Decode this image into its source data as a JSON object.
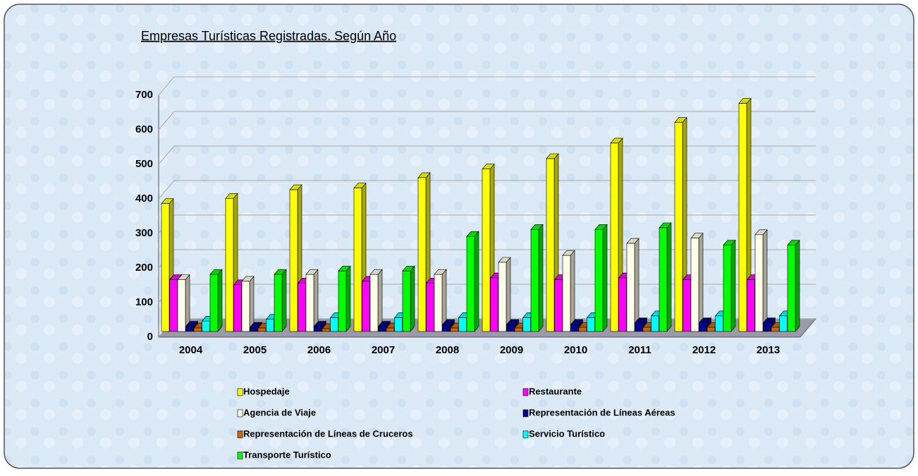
{
  "chart_data": {
    "type": "bar3d",
    "title": "Empresas Turísticas Registradas. Según Año",
    "categories": [
      "2004",
      "2005",
      "2006",
      "2007",
      "2008",
      "2009",
      "2010",
      "2011",
      "2012",
      "2013"
    ],
    "ylim": [
      0,
      700
    ],
    "yticks": [
      0,
      100,
      200,
      300,
      400,
      500,
      600,
      700
    ],
    "grid": true,
    "series": [
      {
        "name": "Hospedaje",
        "color": "#ffff00",
        "values": [
          370,
          385,
          410,
          415,
          445,
          470,
          500,
          545,
          605,
          660
        ]
      },
      {
        "name": "Restaurante",
        "color": "#ff00ff",
        "values": [
          150,
          135,
          140,
          145,
          140,
          155,
          150,
          155,
          150,
          150
        ]
      },
      {
        "name": "Agencia de Viaje",
        "color": "#fffde8",
        "values": [
          150,
          145,
          165,
          165,
          165,
          200,
          220,
          255,
          270,
          280
        ]
      },
      {
        "name": "Representación de Líneas Aéreas",
        "color": "#00008b",
        "values": [
          15,
          12,
          15,
          15,
          20,
          20,
          20,
          25,
          25,
          25
        ]
      },
      {
        "name": "Representación de Líneas de Cruceros",
        "color": "#cc6600",
        "values": [
          10,
          10,
          8,
          10,
          10,
          10,
          12,
          12,
          12,
          12
        ]
      },
      {
        "name": "Servicio Turístico",
        "color": "#00ffff",
        "values": [
          30,
          35,
          40,
          40,
          40,
          40,
          40,
          45,
          45,
          45
        ]
      },
      {
        "name": "Transporte Turístico",
        "color": "#00ff00",
        "values": [
          165,
          165,
          175,
          175,
          275,
          295,
          295,
          300,
          250,
          250
        ]
      }
    ]
  }
}
